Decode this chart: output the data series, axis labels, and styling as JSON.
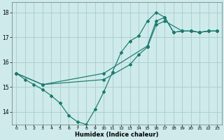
{
  "bg_color": "#ceeaea",
  "grid_color": "#aacccc",
  "line_color": "#1a7a6e",
  "xlabel": "Humidex (Indice chaleur)",
  "ylim": [
    13.5,
    18.4
  ],
  "xlim": [
    -0.5,
    23.5
  ],
  "yticks": [
    14,
    15,
    16,
    17,
    18
  ],
  "xticks": [
    0,
    1,
    2,
    3,
    4,
    5,
    6,
    7,
    8,
    9,
    10,
    11,
    12,
    13,
    14,
    15,
    16,
    17,
    18,
    19,
    20,
    21,
    22,
    23
  ],
  "line1_x": [
    0,
    1,
    2,
    3,
    4,
    5,
    6,
    7,
    8,
    9,
    10,
    11,
    12,
    13,
    14,
    15,
    16,
    17,
    18,
    19,
    20,
    21,
    22,
    23
  ],
  "line1_y": [
    15.55,
    15.3,
    15.1,
    14.9,
    14.65,
    14.35,
    13.85,
    13.6,
    13.5,
    14.1,
    14.8,
    15.6,
    16.4,
    16.85,
    17.05,
    17.65,
    18.0,
    17.8,
    17.2,
    17.25,
    17.25,
    17.2,
    17.25,
    17.25
  ],
  "line2_x": [
    0,
    3,
    10,
    15,
    16,
    17,
    18,
    19,
    20,
    21,
    22,
    23
  ],
  "line2_y": [
    15.55,
    15.1,
    15.55,
    16.65,
    17.65,
    17.8,
    17.2,
    17.25,
    17.25,
    17.2,
    17.25,
    17.25
  ],
  "line3_x": [
    0,
    3,
    10,
    13,
    14,
    15,
    16,
    17,
    19,
    20,
    21,
    22,
    23
  ],
  "line3_y": [
    15.55,
    15.1,
    15.3,
    15.9,
    16.3,
    16.6,
    17.5,
    17.65,
    17.25,
    17.25,
    17.2,
    17.25,
    17.25
  ],
  "figsize": [
    3.2,
    2.0
  ],
  "dpi": 100
}
